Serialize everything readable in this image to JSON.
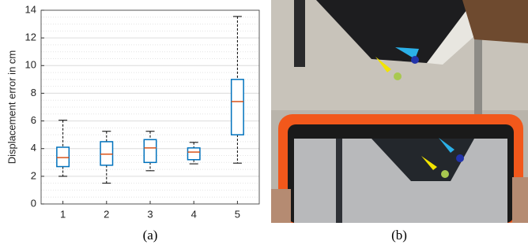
{
  "chart_data": {
    "type": "box",
    "ylabel": "Displacement error in cm",
    "categories": [
      "1",
      "2",
      "3",
      "4",
      "5"
    ],
    "boxes": [
      {
        "min": 2.0,
        "q1": 2.7,
        "median": 3.35,
        "q3": 4.1,
        "max": 6.05
      },
      {
        "min": 1.5,
        "q1": 2.8,
        "median": 3.6,
        "q3": 4.5,
        "max": 5.25
      },
      {
        "min": 2.4,
        "q1": 3.0,
        "median": 4.05,
        "q3": 4.65,
        "max": 5.25
      },
      {
        "min": 2.9,
        "q1": 3.2,
        "median": 3.75,
        "q3": 4.05,
        "max": 4.45
      },
      {
        "min": 2.95,
        "q1": 5.0,
        "median": 7.4,
        "q3": 9.0,
        "max": 13.55
      }
    ],
    "box_color": "#0072bd",
    "median_color": "#d95319",
    "ylim": [
      0,
      14
    ],
    "yticks": [
      0,
      2,
      4,
      6,
      8,
      10,
      12,
      14
    ],
    "minor_yticks": [
      0.5,
      1,
      1.5,
      2.5,
      3,
      3.5,
      4.5,
      5,
      5.5,
      6.5,
      7,
      7.5,
      8.5,
      9,
      9.5,
      10.5,
      11,
      11.5,
      12.5,
      13,
      13.5
    ],
    "grid": true
  },
  "captions": [
    "(a)",
    "(b)"
  ]
}
